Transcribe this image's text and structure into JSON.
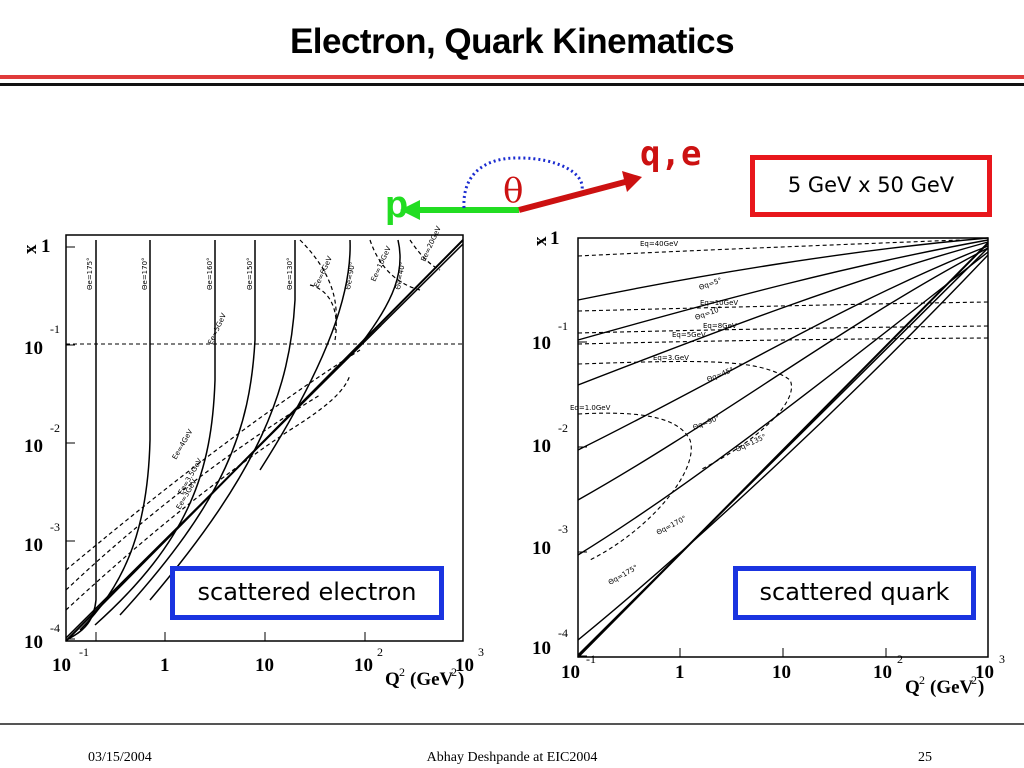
{
  "slide": {
    "title": "Electron, Quark Kinematics",
    "beam_energy": "5 GeV x 50 GeV",
    "footer_date": "03/15/2004",
    "footer_author": "Abhay Deshpande at EIC2004",
    "footer_page": "25"
  },
  "diagram": {
    "proton_label": "p",
    "scattered_label": "q,e",
    "angle_label": "θ",
    "colors": {
      "proton": "#22dd22",
      "scattered": "#cc1111",
      "arc": "#1a2bd0",
      "accent_red": "#e8171c",
      "accent_blue": "#1a34e0"
    }
  },
  "plots": [
    {
      "caption": "scattered electron",
      "y_axis_label": "x",
      "x_axis_label": "Q",
      "x_axis_sup": "2",
      "x_axis_unit": "(GeV",
      "x_axis_unit_sup": "2",
      "x_axis_close": ")",
      "x_ticks": [
        {
          "base": "10",
          "exp": "-1"
        },
        {
          "base": "1",
          "exp": ""
        },
        {
          "base": "10",
          "exp": ""
        },
        {
          "base": "10",
          "exp": "2"
        },
        {
          "base": "10",
          "exp": "3"
        }
      ],
      "y_ticks": [
        {
          "base": "1",
          "exp": ""
        },
        {
          "base": "10",
          "exp": "-1"
        },
        {
          "base": "10",
          "exp": "-2"
        },
        {
          "base": "10",
          "exp": "-3"
        },
        {
          "base": "10",
          "exp": "-4"
        }
      ],
      "curve_labels": [
        "Θe=175°",
        "Θe=170°",
        "Θe=160°",
        "Θe=150°",
        "Θe=130°",
        "Ee=6GeV",
        "Θe=90°",
        "Ee=10GeV",
        "Θe=40°",
        "Ee=20GeV",
        "Ee=5GeV",
        "Ee=4GeV",
        "Ee=3.5GeV",
        "Ee=3GeV"
      ]
    },
    {
      "caption": "scattered quark",
      "y_axis_label": "x",
      "x_axis_label": "Q",
      "x_axis_sup": "2",
      "x_axis_unit": "(GeV",
      "x_axis_unit_sup": "2",
      "x_axis_close": ")",
      "x_ticks": [
        {
          "base": "10",
          "exp": "-1"
        },
        {
          "base": "1",
          "exp": ""
        },
        {
          "base": "10",
          "exp": ""
        },
        {
          "base": "10",
          "exp": "2"
        },
        {
          "base": "10",
          "exp": "3"
        }
      ],
      "y_ticks": [
        {
          "base": "1",
          "exp": ""
        },
        {
          "base": "10",
          "exp": "-1"
        },
        {
          "base": "10",
          "exp": "-2"
        },
        {
          "base": "10",
          "exp": "-3"
        },
        {
          "base": "10",
          "exp": "-4"
        }
      ],
      "curve_labels": [
        "Eq=40GeV",
        "Θq=5°",
        "Eq=10GeV",
        "Θq=10°",
        "Eq=8GeV",
        "Eq=5GeV",
        "Eq=3.GeV",
        "Θq=45°",
        "Eq=1.0GeV",
        "Θq=90°",
        "Θq=135°",
        "Θq=170°",
        "Θq=175°"
      ]
    }
  ]
}
